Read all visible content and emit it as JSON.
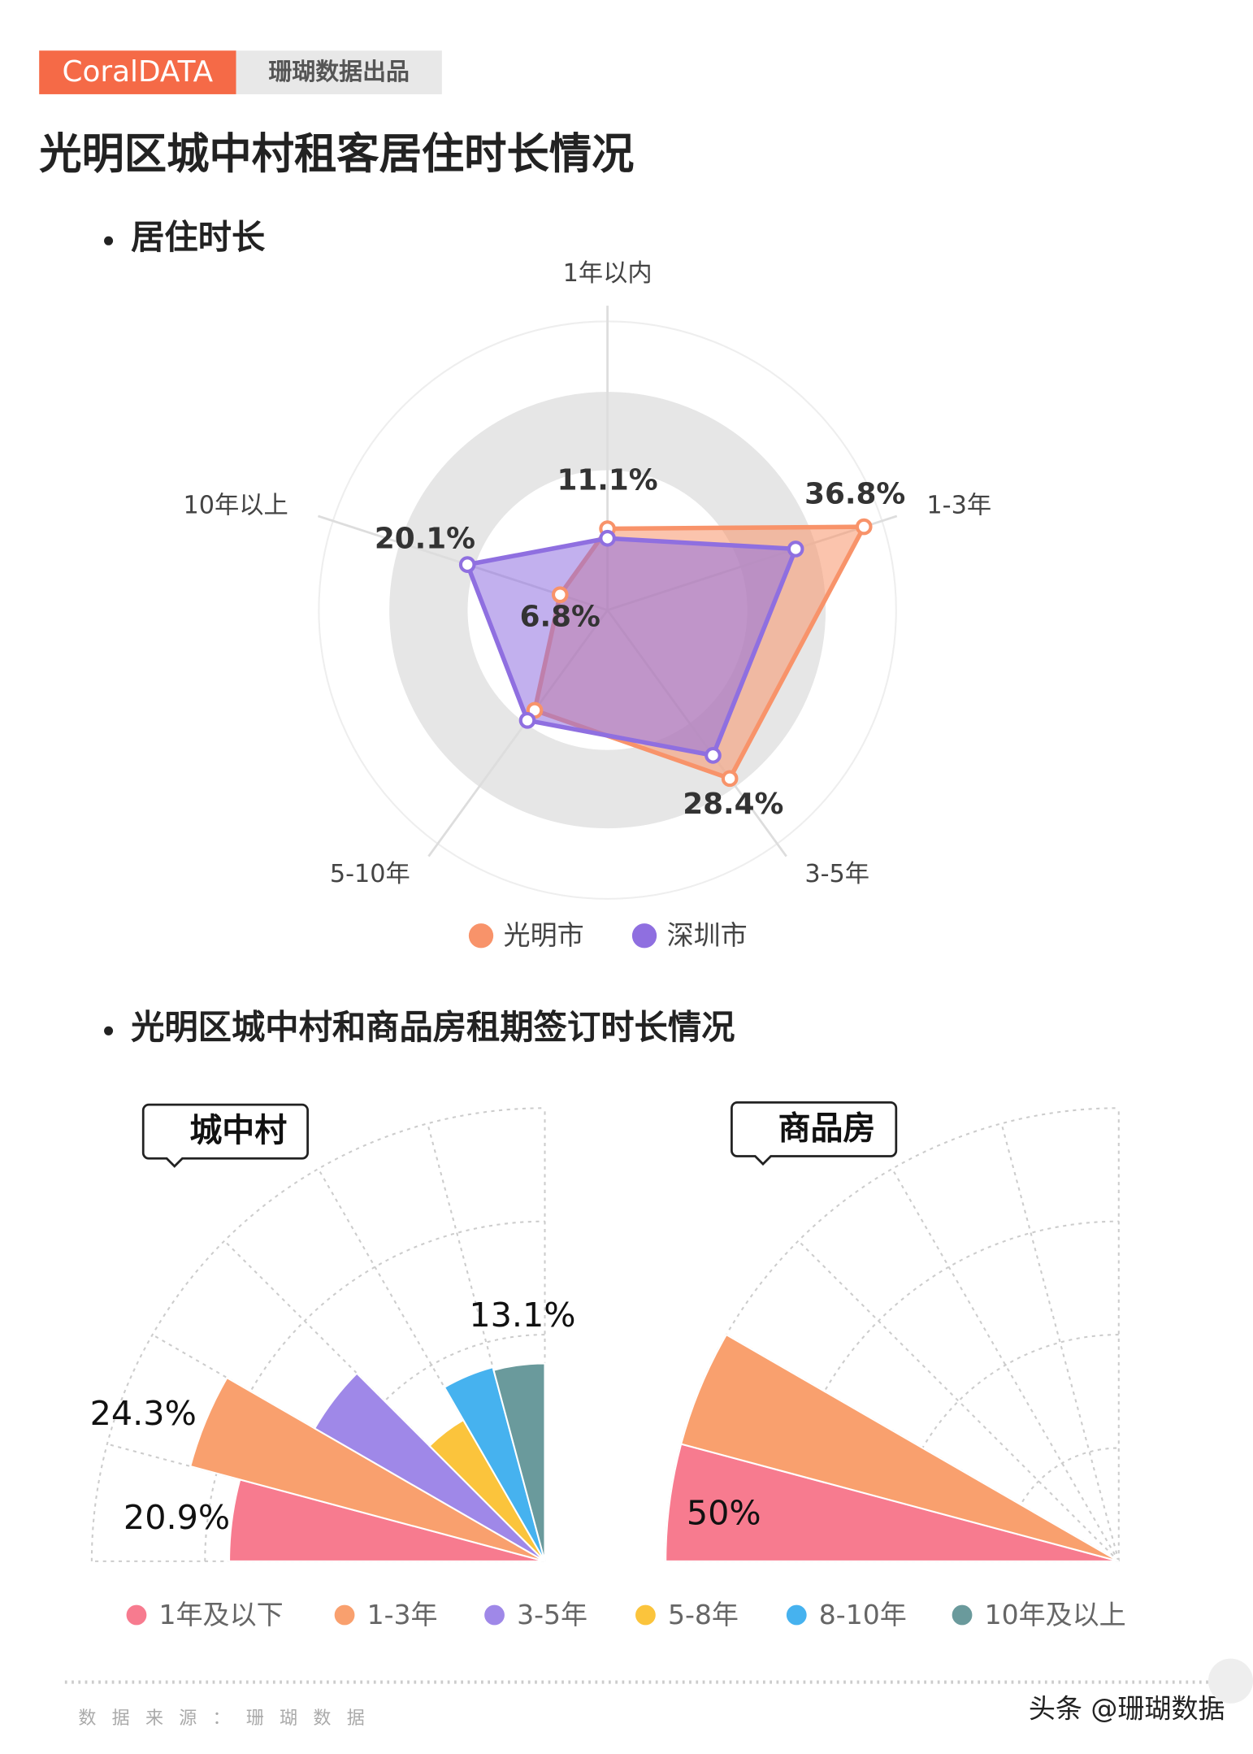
{
  "header": {
    "brand": "CoralDATA",
    "tag": "珊瑚数据出品"
  },
  "title": "光明区城中村租客居住时长情况",
  "chart_data": [
    {
      "type": "radar",
      "title": "居住时长",
      "categories": [
        "1年以内",
        "1-3年",
        "3-5年",
        "5-10年",
        "10年以上"
      ],
      "rlim": [
        0,
        40
      ],
      "legend": "bottom",
      "series": [
        {
          "name": "光明市",
          "color": "#f8936a",
          "values": [
            11.1,
            36.8,
            28.4,
            16.9,
            6.8
          ],
          "value_labels": [
            "11.1%",
            "36.8%",
            "28.4%",
            null,
            "6.8%"
          ]
        },
        {
          "name": "深圳市",
          "color": "#8f6fe0",
          "values": [
            9.8,
            27.0,
            24.5,
            18.6,
            20.1
          ],
          "value_labels": [
            null,
            null,
            null,
            null,
            "20.1%"
          ]
        }
      ]
    },
    {
      "type": "polar_bar",
      "title": "光明区城中村和商品房租期签订时长情况",
      "categories": [
        "1年及以下",
        "1-3年",
        "3-5年",
        "5-8年",
        "8-10年",
        "10年及以上"
      ],
      "colors": [
        "#f77b8f",
        "#f9a06e",
        "#9f88e8",
        "#fbc43c",
        "#46b2ef",
        "#6a9a9c"
      ],
      "legend": "bottom",
      "series": [
        {
          "name": "城中村",
          "rlim": [
            0,
            30
          ],
          "values": [
            20.9,
            24.3,
            17.6,
            10.8,
            13.3,
            13.1
          ],
          "value_labels": [
            "20.9%",
            "24.3%",
            null,
            null,
            null,
            "13.1%"
          ]
        },
        {
          "name": "商品房",
          "rlim": [
            0,
            50
          ],
          "values": [
            50,
            50,
            0,
            0,
            0,
            0
          ],
          "value_labels": [
            "50%",
            null,
            null,
            null,
            null,
            null
          ]
        }
      ]
    }
  ],
  "footer": {
    "source": "数据来源：珊瑚数据",
    "credit": "头条 @珊瑚数据"
  }
}
